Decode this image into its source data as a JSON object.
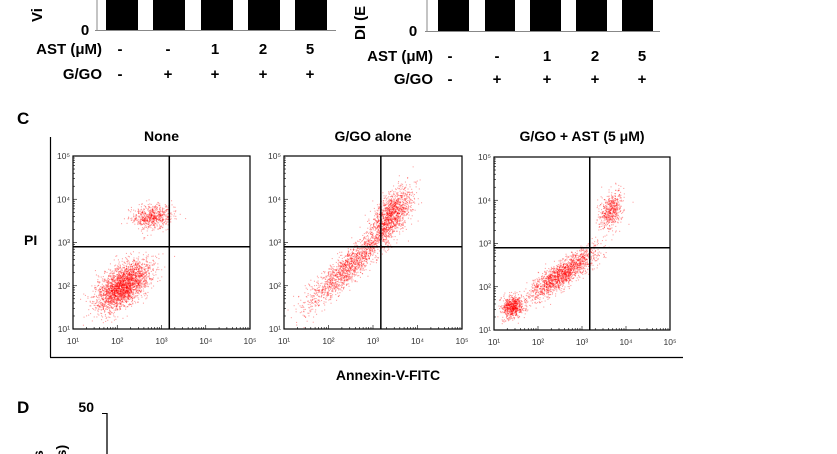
{
  "panel_c_label": "C",
  "panel_d_label": "D",
  "top_bar_charts": {
    "left": {
      "y_zero_label": "0",
      "ylabel_fragment": "Vi",
      "rows": [
        {
          "label": "AST (μM)",
          "values": [
            "-",
            "-",
            "1",
            "2",
            "5"
          ]
        },
        {
          "label": "G/GO",
          "values": [
            "-",
            "+",
            "+",
            "+",
            "+"
          ]
        }
      ]
    },
    "right": {
      "y_zero_label": "0",
      "ylabel_fragment": "DI (E",
      "rows": [
        {
          "label": "AST (μM)",
          "values": [
            "-",
            "-",
            "1",
            "2",
            "5"
          ]
        },
        {
          "label": "G/GO",
          "values": [
            "-",
            "+",
            "+",
            "+",
            "+"
          ]
        }
      ]
    }
  },
  "panel_d": {
    "y_top_label": "50",
    "ylabel_fragments": [
      "s",
      "(s)"
    ]
  },
  "chart_data": [
    {
      "type": "scatter",
      "title": "None",
      "xlabel": "Annexin-V-FITC",
      "ylabel": "PI",
      "x_scale": "log",
      "y_scale": "log",
      "xlim": [
        10,
        100000
      ],
      "ylim": [
        10,
        100000
      ],
      "x_ticks": [
        "10¹",
        "10²",
        "10³",
        "10⁴",
        "10⁵"
      ],
      "y_ticks": [
        "10¹",
        "10²",
        "10³",
        "10⁴",
        "10⁵"
      ],
      "quadrant_gate": {
        "x": 1500,
        "y": 800
      },
      "point_color": "#ff0000",
      "populations": [
        {
          "center": [
            130,
            100
          ],
          "share": 0.8
        },
        {
          "center": [
            600,
            4000
          ],
          "share": 0.2
        }
      ]
    },
    {
      "type": "scatter",
      "title": "G/GO alone",
      "x_scale": "log",
      "y_scale": "log",
      "xlim": [
        10,
        100000
      ],
      "ylim": [
        10,
        100000
      ],
      "x_ticks": [
        "10¹",
        "10²",
        "10³",
        "10⁴",
        "10⁵"
      ],
      "y_ticks": [
        "10¹",
        "10²",
        "10³",
        "10⁴",
        "10⁵"
      ],
      "quadrant_gate": {
        "x": 1500,
        "y": 800
      },
      "point_color": "#ff0000",
      "populations": [
        {
          "center": [
            2500,
            4500
          ],
          "share": 0.45
        },
        {
          "center": [
            300,
            300
          ],
          "share": 0.55
        }
      ]
    },
    {
      "type": "scatter",
      "title": "G/GO + AST (5 μM)",
      "x_scale": "log",
      "y_scale": "log",
      "xlim": [
        10,
        100000
      ],
      "ylim": [
        10,
        100000
      ],
      "x_ticks": [
        "10¹",
        "10²",
        "10³",
        "10⁴",
        "10⁵"
      ],
      "y_ticks": [
        "10¹",
        "10²",
        "10³",
        "10⁴",
        "10⁵"
      ],
      "quadrant_gate": {
        "x": 1500,
        "y": 800
      },
      "point_color": "#ff0000",
      "populations": [
        {
          "center": [
            25,
            35
          ],
          "share": 0.25
        },
        {
          "center": [
            350,
            200
          ],
          "share": 0.55
        },
        {
          "center": [
            4500,
            6000
          ],
          "share": 0.2
        }
      ]
    }
  ]
}
